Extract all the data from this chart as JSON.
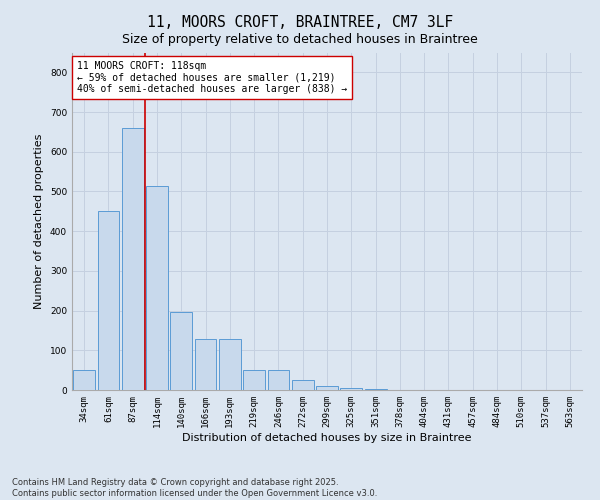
{
  "title": "11, MOORS CROFT, BRAINTREE, CM7 3LF",
  "subtitle": "Size of property relative to detached houses in Braintree",
  "xlabel": "Distribution of detached houses by size in Braintree",
  "ylabel": "Number of detached properties",
  "categories": [
    "34sqm",
    "61sqm",
    "87sqm",
    "114sqm",
    "140sqm",
    "166sqm",
    "193sqm",
    "219sqm",
    "246sqm",
    "272sqm",
    "299sqm",
    "325sqm",
    "351sqm",
    "378sqm",
    "404sqm",
    "431sqm",
    "457sqm",
    "484sqm",
    "510sqm",
    "537sqm",
    "563sqm"
  ],
  "values": [
    50,
    452,
    660,
    515,
    197,
    128,
    128,
    50,
    50,
    25,
    10,
    5,
    2,
    0,
    0,
    0,
    0,
    0,
    0,
    0,
    0
  ],
  "bar_color": "#c8d9ec",
  "bar_edge_color": "#5b9bd5",
  "vline_x": 2.5,
  "vline_color": "#cc0000",
  "annotation_text": "11 MOORS CROFT: 118sqm\n← 59% of detached houses are smaller (1,219)\n40% of semi-detached houses are larger (838) →",
  "annotation_box_color": "#ffffff",
  "annotation_box_edge": "#cc0000",
  "ylim": [
    0,
    850
  ],
  "yticks": [
    0,
    100,
    200,
    300,
    400,
    500,
    600,
    700,
    800
  ],
  "grid_color": "#c5d0e0",
  "background_color": "#dce6f1",
  "footnote": "Contains HM Land Registry data © Crown copyright and database right 2025.\nContains public sector information licensed under the Open Government Licence v3.0.",
  "title_fontsize": 10.5,
  "subtitle_fontsize": 9,
  "xlabel_fontsize": 8,
  "ylabel_fontsize": 8,
  "tick_fontsize": 6.5,
  "footnote_fontsize": 6,
  "annot_fontsize": 7
}
